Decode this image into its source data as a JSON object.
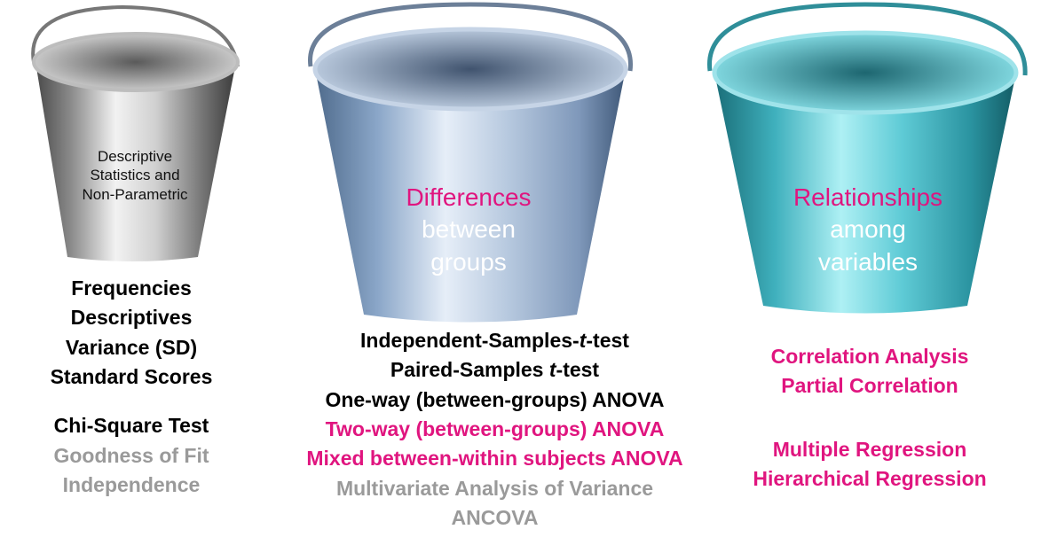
{
  "colors": {
    "pink": "#e0157f",
    "black": "#000000",
    "gray": "#9a9a9a",
    "white": "#ffffff"
  },
  "buckets": [
    {
      "icon": "silver-bucket",
      "label_lines": [
        "Descriptive",
        "Statistics and",
        "Non-Parametric"
      ],
      "items": [
        {
          "text": "Frequencies",
          "color": "black"
        },
        {
          "text": "Descriptives",
          "color": "black"
        },
        {
          "text": "Variance (SD)",
          "color": "black"
        },
        {
          "text": "Standard Scores",
          "color": "black"
        },
        {
          "text": "Chi-Square Test",
          "color": "black"
        },
        {
          "text": "Goodness of Fit",
          "color": "gray"
        },
        {
          "text": "Independence",
          "color": "gray"
        }
      ]
    },
    {
      "icon": "blue-steel-bucket",
      "label_lines": [
        "Differences",
        "between",
        "groups"
      ],
      "items": [
        {
          "text_pre": "Independent-Samples-",
          "text_italic": "t",
          "text_post": "-test",
          "color": "black"
        },
        {
          "text_pre": "Paired-Samples ",
          "text_italic": "t",
          "text_post": "-test",
          "color": "black"
        },
        {
          "text": "One-way (between-groups) ANOVA",
          "color": "black"
        },
        {
          "text": "Two-way (between-groups) ANOVA",
          "color": "pink"
        },
        {
          "text": "Mixed between-within subjects ANOVA",
          "color": "pink"
        },
        {
          "text": "Multivariate Analysis of Variance",
          "color": "gray"
        },
        {
          "text": "ANCOVA",
          "color": "gray"
        }
      ]
    },
    {
      "icon": "teal-bucket",
      "label_lines": [
        "Relationships",
        "among",
        "variables"
      ],
      "items": [
        {
          "text": "Correlation Analysis",
          "color": "pink"
        },
        {
          "text": "Partial Correlation",
          "color": "pink"
        },
        {
          "text": "Multiple Regression",
          "color": "pink"
        },
        {
          "text": "Hierarchical Regression",
          "color": "pink"
        }
      ]
    }
  ]
}
